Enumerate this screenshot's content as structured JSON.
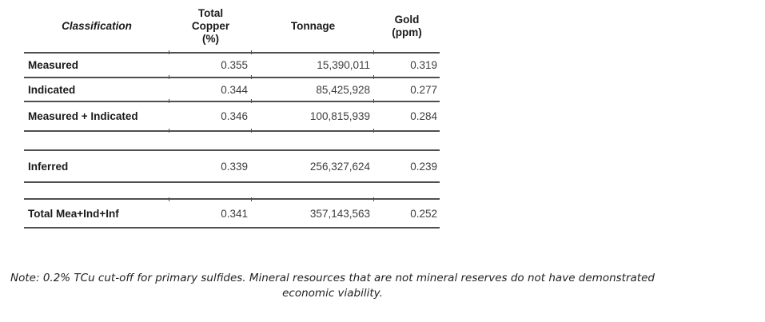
{
  "table": {
    "columns": [
      {
        "label": "Classification"
      },
      {
        "label": "Total\nCopper\n(%)"
      },
      {
        "label": "Tonnage"
      },
      {
        "label": "Gold\n(ppm)"
      }
    ],
    "rows": [
      {
        "classification": "Measured",
        "total_copper_pct": "0.355",
        "tonnage": "15,390,011",
        "gold_ppm": "0.319"
      },
      {
        "classification": "Indicated",
        "total_copper_pct": "0.344",
        "tonnage": "85,425,928",
        "gold_ppm": "0.277"
      },
      {
        "classification": "Measured + Indicated",
        "total_copper_pct": "0.346",
        "tonnage": "100,815,939",
        "gold_ppm": "0.284"
      },
      {
        "classification": "Inferred",
        "total_copper_pct": "0.339",
        "tonnage": "256,327,624",
        "gold_ppm": "0.239"
      },
      {
        "classification": "Total Mea+Ind+Inf",
        "total_copper_pct": "0.341",
        "tonnage": "357,143,563",
        "gold_ppm": "0.252"
      }
    ]
  },
  "note": "Note: 0.2% TCu cut-off for primary sulfides. Mineral resources that are not mineral reserves do not have demonstrated economic viability.",
  "colors": {
    "background": "#ffffff",
    "rule_line": "#4f4f4f",
    "label_text": "#1a1a1a",
    "value_text": "#3d3d3d",
    "note_text": "#1f1f1f"
  }
}
